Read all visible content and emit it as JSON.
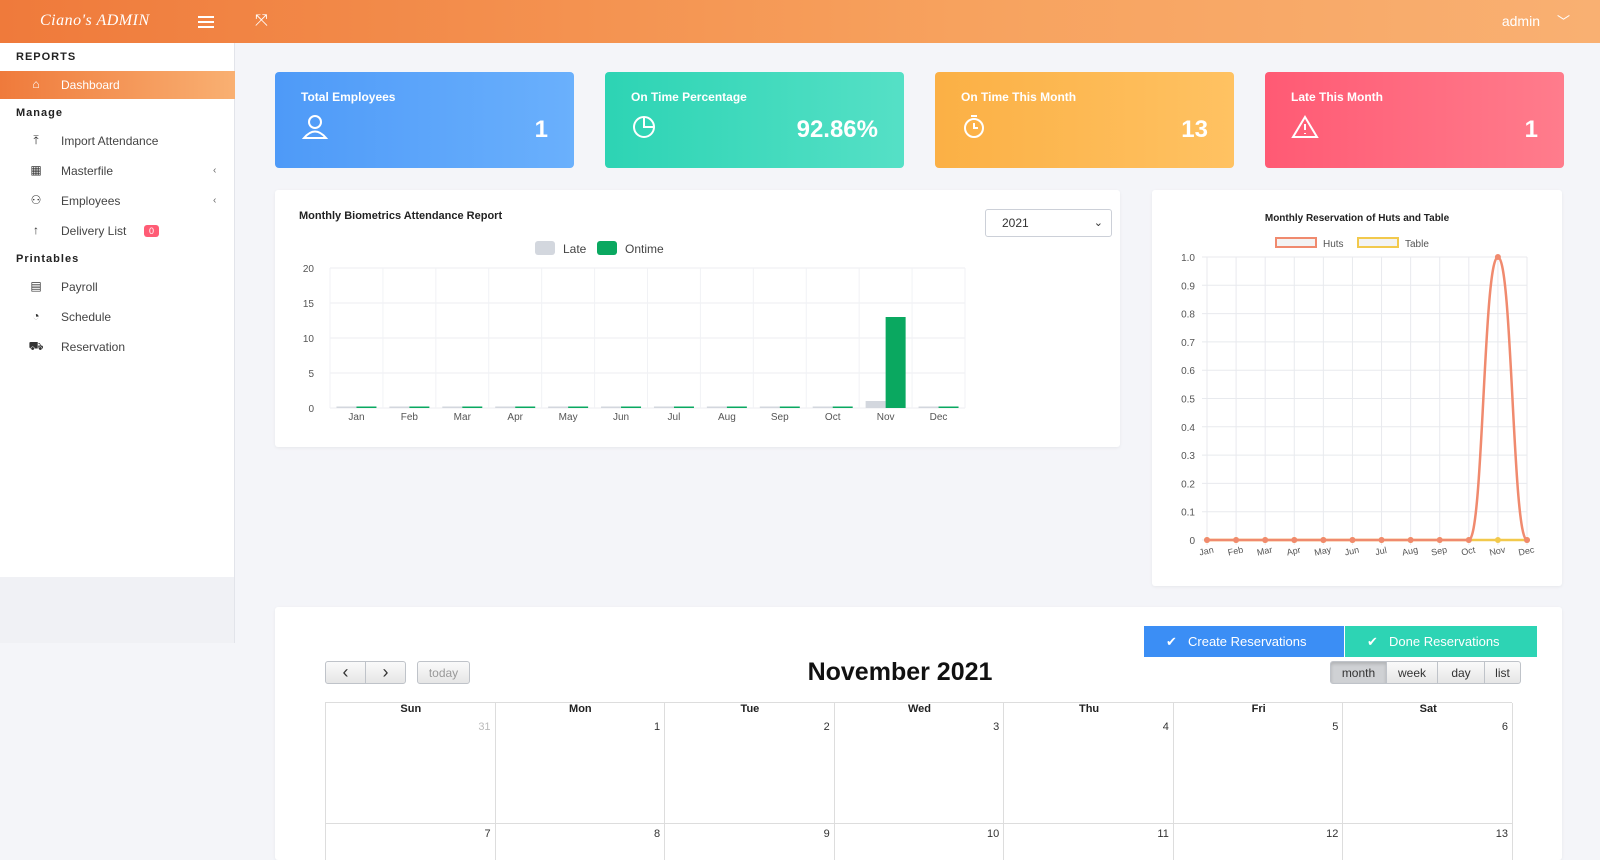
{
  "header": {
    "brand": "Ciano's ADMIN",
    "user": "admin"
  },
  "sidebar": {
    "sections": [
      {
        "title": "REPORTS",
        "items": [
          {
            "label": "Dashboard",
            "icon": "home-icon",
            "active": true
          }
        ]
      },
      {
        "title": "Manage",
        "items": [
          {
            "label": "Import Attendance",
            "icon": "upload-icon"
          },
          {
            "label": "Masterfile",
            "icon": "grid-icon",
            "caret": "‹"
          },
          {
            "label": "Employees",
            "icon": "user-icon",
            "caret": "‹"
          },
          {
            "label": "Delivery List",
            "icon": "arrow-up-icon",
            "badge": "0"
          }
        ]
      },
      {
        "title": "Printables",
        "items": [
          {
            "label": "Payroll",
            "icon": "document-icon"
          },
          {
            "label": "Schedule",
            "icon": "clock-icon"
          },
          {
            "label": "Reservation",
            "icon": "cart-icon"
          }
        ]
      }
    ]
  },
  "cards": [
    {
      "title": "Total Employees",
      "value": "1",
      "icon": "user-icon",
      "color_from": "#4e9af8",
      "color_to": "#6ab0fc"
    },
    {
      "title": "On Time Percentage",
      "value": "92.86%",
      "icon": "pie-icon",
      "color_from": "#2dd4b4",
      "color_to": "#55e0c6"
    },
    {
      "title": "On Time This Month",
      "value": "13",
      "icon": "stopwatch-icon",
      "color_from": "#fbb045",
      "color_to": "#ffc262"
    },
    {
      "title": "Late This Month",
      "value": "1",
      "icon": "warning-icon",
      "color_from": "#ff5a74",
      "color_to": "#ff7c8c"
    }
  ],
  "attendance": {
    "title": "Monthly Biometrics Attendance Report",
    "year": "2021",
    "chart_data": {
      "type": "bar",
      "title": "Monthly Biometrics Attendance Report",
      "categories": [
        "Jan",
        "Feb",
        "Mar",
        "Apr",
        "May",
        "Jun",
        "Jul",
        "Aug",
        "Sep",
        "Oct",
        "Nov",
        "Dec"
      ],
      "series": [
        {
          "name": "Late",
          "color": "#d3d7de",
          "values": [
            0,
            0,
            0,
            0,
            0,
            0,
            0,
            0,
            0,
            0,
            1,
            0
          ]
        },
        {
          "name": "Ontime",
          "color": "#0aa860",
          "values": [
            0,
            0,
            0,
            0,
            0,
            0,
            0,
            0,
            0,
            0,
            13,
            0
          ]
        }
      ],
      "ylim": [
        0,
        20
      ],
      "yticks": [
        0,
        5,
        10,
        15,
        20
      ],
      "legend": "top",
      "grid": true
    }
  },
  "reservation": {
    "title": "Monthly Reservation of Huts and Table",
    "chart_data": {
      "type": "line",
      "title": "Monthly Reservation of Huts and Table",
      "categories": [
        "Jan",
        "Feb",
        "Mar",
        "Apr",
        "May",
        "Jun",
        "Jul",
        "Aug",
        "Sep",
        "Oct",
        "Nov",
        "Dec"
      ],
      "series": [
        {
          "name": "Huts",
          "color": "#f08a6e",
          "values": [
            0,
            0,
            0,
            0,
            0,
            0,
            0,
            0,
            0,
            0,
            1,
            0
          ]
        },
        {
          "name": "Table",
          "color": "#f2c94c",
          "values": [
            0,
            0,
            0,
            0,
            0,
            0,
            0,
            0,
            0,
            0,
            0,
            0
          ]
        }
      ],
      "ylim": [
        0,
        1
      ],
      "yticks": [
        "0",
        "0.1",
        "0.2",
        "0.3",
        "0.4",
        "0.5",
        "0.6",
        "0.7",
        "0.8",
        "0.9",
        "1.0"
      ],
      "legend": "top",
      "grid": true
    }
  },
  "calendar": {
    "create_label": "Create Reservations",
    "done_label": "Done Reservations",
    "today_label": "today",
    "prev": "‹",
    "next": "›",
    "title": "November 2021",
    "views": [
      "month",
      "week",
      "day",
      "list"
    ],
    "active_view": "month",
    "days": [
      "Sun",
      "Mon",
      "Tue",
      "Wed",
      "Thu",
      "Fri",
      "Sat"
    ],
    "weeks": [
      [
        "31",
        "1",
        "2",
        "3",
        "4",
        "5",
        "6"
      ],
      [
        "7",
        "8",
        "9",
        "10",
        "11",
        "12",
        "13"
      ]
    ]
  }
}
